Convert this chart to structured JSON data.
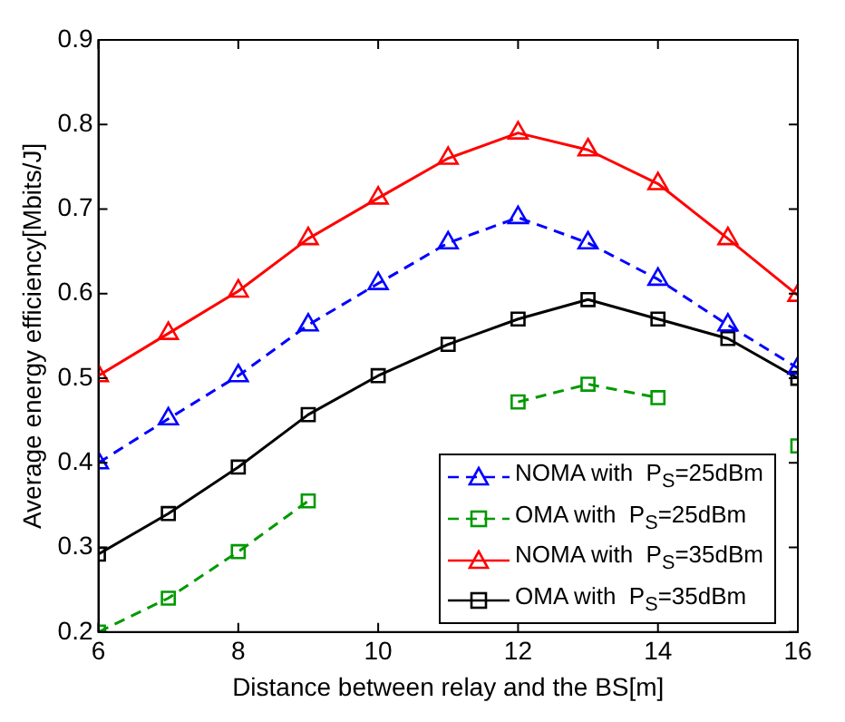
{
  "chart_data": {
    "type": "line",
    "xlabel": "Distance between relay and the BS[m]",
    "ylabel": "Average energy efficiency[Mbits/J]",
    "x": [
      6,
      7,
      8,
      9,
      10,
      11,
      12,
      13,
      14,
      15,
      16
    ],
    "xlim": [
      6,
      16
    ],
    "xticks": [
      6,
      8,
      10,
      12,
      14,
      16
    ],
    "ylim": [
      0.2,
      0.9
    ],
    "yticks": [
      0.2,
      0.3,
      0.4,
      0.5,
      0.6,
      0.7,
      0.8,
      0.9
    ],
    "grid": false,
    "legend": "bottom right",
    "series": [
      {
        "name": "NOMA with  P$_{S}$=25dBm",
        "color": "#0000ff",
        "marker": "triangle",
        "line_style": "dashed",
        "values": [
          0.4,
          0.452,
          0.503,
          0.563,
          0.612,
          0.66,
          0.69,
          0.66,
          0.617,
          0.563,
          0.512
        ]
      },
      {
        "name": "OMA with  P$_{S}$=25dBm",
        "color": "#009900",
        "marker": "square",
        "line_style": "dashed",
        "values": [
          0.2,
          0.24,
          0.295,
          0.355,
          null,
          null,
          0.472,
          0.493,
          0.477,
          null,
          0.42
        ]
      },
      {
        "name": "NOMA with  P$_{S}$=35dBm",
        "color": "#ff0000",
        "marker": "triangle",
        "line_style": "solid",
        "values": [
          0.503,
          0.553,
          0.603,
          0.665,
          0.713,
          0.76,
          0.79,
          0.77,
          0.73,
          0.665,
          0.598
        ]
      },
      {
        "name": "OMA with  P$_{S}$=35dBm",
        "color": "#000000",
        "marker": "square",
        "line_style": "solid",
        "values": [
          0.292,
          0.34,
          0.395,
          0.457,
          0.503,
          0.54,
          0.57,
          0.593,
          0.57,
          0.547,
          0.5
        ]
      }
    ]
  }
}
